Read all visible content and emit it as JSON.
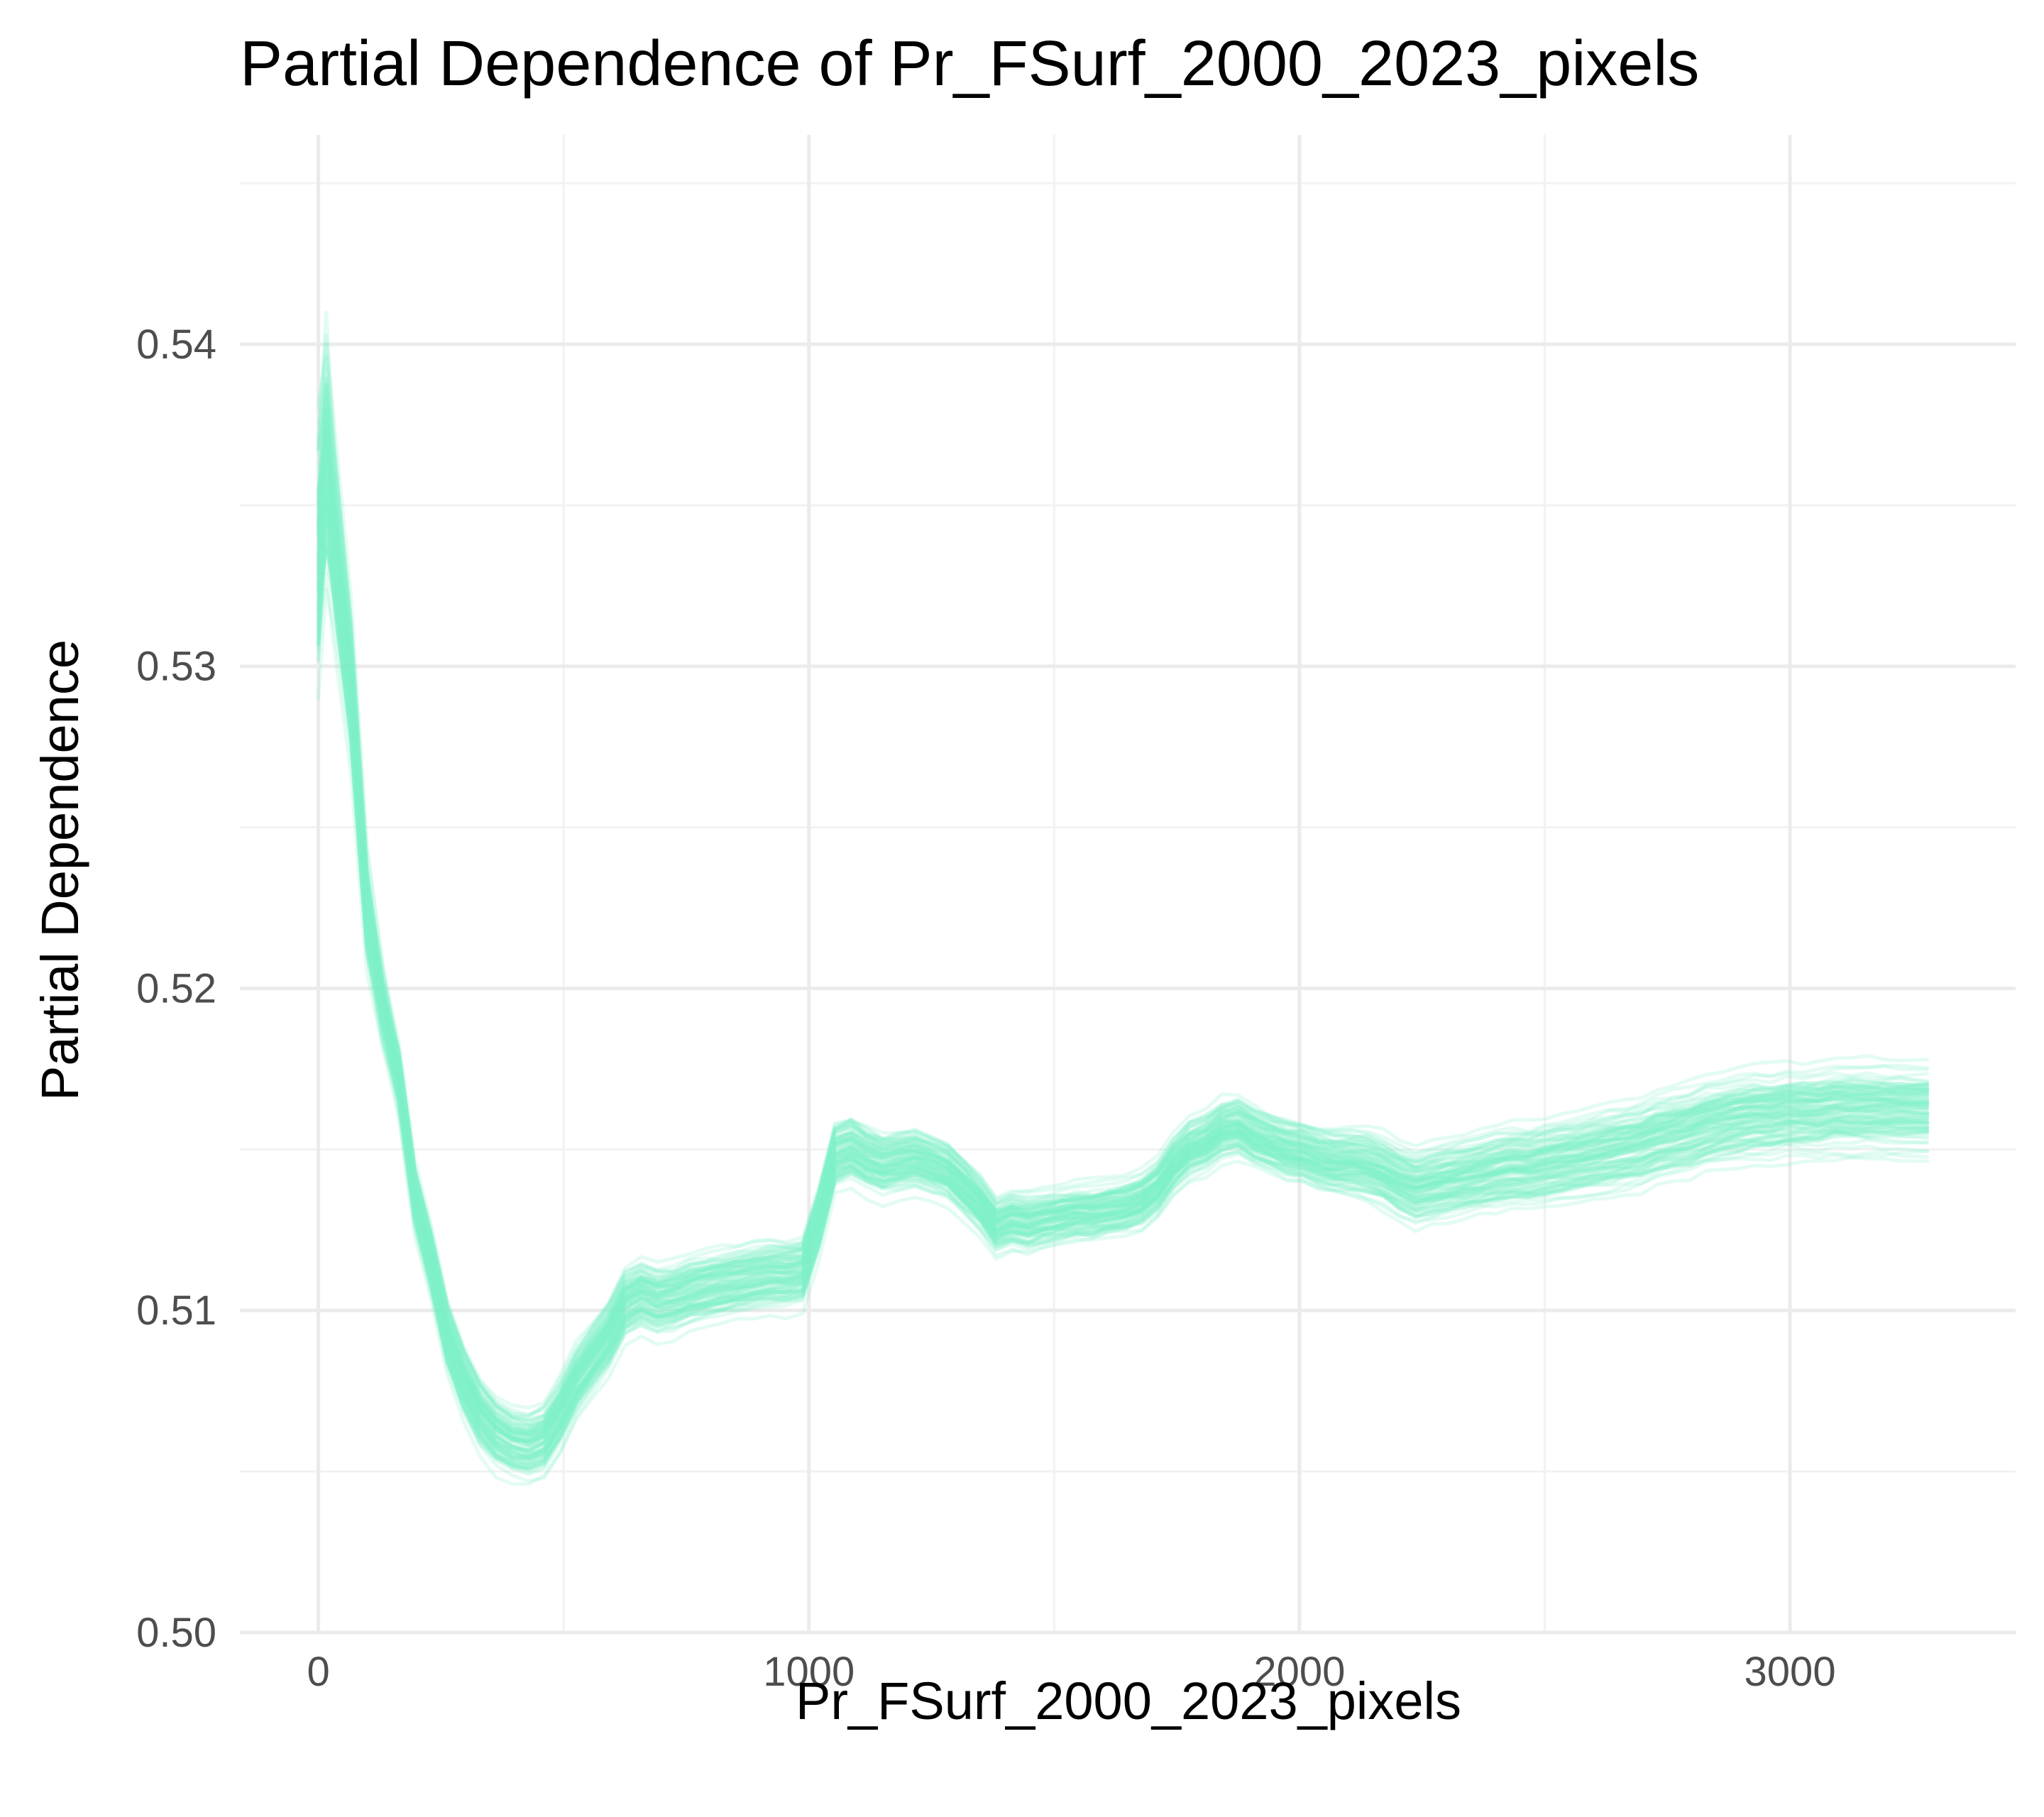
{
  "chart_data": {
    "type": "line",
    "title": "Partial Dependence of Pr_FSurf_2000_2023_pixels",
    "xlabel": "Pr_FSurf_2000_2023_pixels",
    "ylabel": "Partial Dependence",
    "xlim": [
      -160,
      3460
    ],
    "ylim": [
      0.5,
      0.5465
    ],
    "x_ticks": [
      0,
      1000,
      2000,
      3000
    ],
    "x_tick_labels": [
      "0",
      "1000",
      "2000",
      "3000"
    ],
    "y_ticks": [
      0.5,
      0.51,
      0.52,
      0.53,
      0.54
    ],
    "y_tick_labels": [
      "0.50",
      "0.51",
      "0.52",
      "0.53",
      "0.54"
    ],
    "grid": true,
    "legend": "none",
    "line_color": "#7ff2c8",
    "line_opacity": 0.22,
    "series_count": 100,
    "x": [
      0,
      16,
      33,
      66,
      99,
      131,
      164,
      197,
      230,
      263,
      296,
      329,
      362,
      395,
      428,
      460,
      493,
      526,
      559,
      592,
      625,
      658,
      691,
      724,
      757,
      789,
      822,
      855,
      888,
      921,
      954,
      987,
      1020,
      1053,
      1086,
      1118,
      1151,
      1184,
      1217,
      1250,
      1283,
      1316,
      1349,
      1382,
      1414,
      1447,
      1480,
      1513,
      1546,
      1579,
      1612,
      1645,
      1678,
      1711,
      1743,
      1776,
      1809,
      1842,
      1875,
      1908,
      1941,
      1974,
      2007,
      2040,
      2072,
      2105,
      2138,
      2171,
      2204,
      2237,
      2270,
      2303,
      2336,
      2369,
      2401,
      2434,
      2467,
      2500,
      2533,
      2566,
      2599,
      2632,
      2665,
      2697,
      2730,
      2763,
      2796,
      2829,
      2862,
      2895,
      2928,
      2961,
      2994,
      3026,
      3059,
      3092,
      3125,
      3158,
      3191,
      3224,
      3280
    ],
    "mean_curve": [
      0.5335,
      0.5365,
      0.534,
      0.5295,
      0.5225,
      0.5195,
      0.5172,
      0.5135,
      0.5115,
      0.5092,
      0.5078,
      0.5068,
      0.5062,
      0.5059,
      0.5058,
      0.506,
      0.5068,
      0.5078,
      0.5085,
      0.5092,
      0.5102,
      0.5105,
      0.5103,
      0.5104,
      0.5106,
      0.5107,
      0.5108,
      0.5109,
      0.511,
      0.5111,
      0.5111,
      0.5112,
      0.5128,
      0.5148,
      0.515,
      0.5147,
      0.5145,
      0.5146,
      0.5147,
      0.5145,
      0.5143,
      0.5138,
      0.5133,
      0.5126,
      0.5128,
      0.5127,
      0.5128,
      0.5129,
      0.513,
      0.513,
      0.5131,
      0.5132,
      0.5134,
      0.5138,
      0.5145,
      0.515,
      0.5152,
      0.5156,
      0.5157,
      0.5154,
      0.5152,
      0.515,
      0.5149,
      0.5147,
      0.5146,
      0.5146,
      0.5145,
      0.5143,
      0.514,
      0.5138,
      0.5139,
      0.514,
      0.5141,
      0.5142,
      0.5143,
      0.5144,
      0.5144,
      0.5145,
      0.5146,
      0.5147,
      0.5148,
      0.5149,
      0.515,
      0.5151,
      0.5153,
      0.5154,
      0.5155,
      0.5157,
      0.5158,
      0.5159,
      0.516,
      0.516,
      0.5161,
      0.5161,
      0.5161,
      0.5162,
      0.5162,
      0.5162,
      0.5162,
      0.5162,
      0.5162
    ]
  }
}
